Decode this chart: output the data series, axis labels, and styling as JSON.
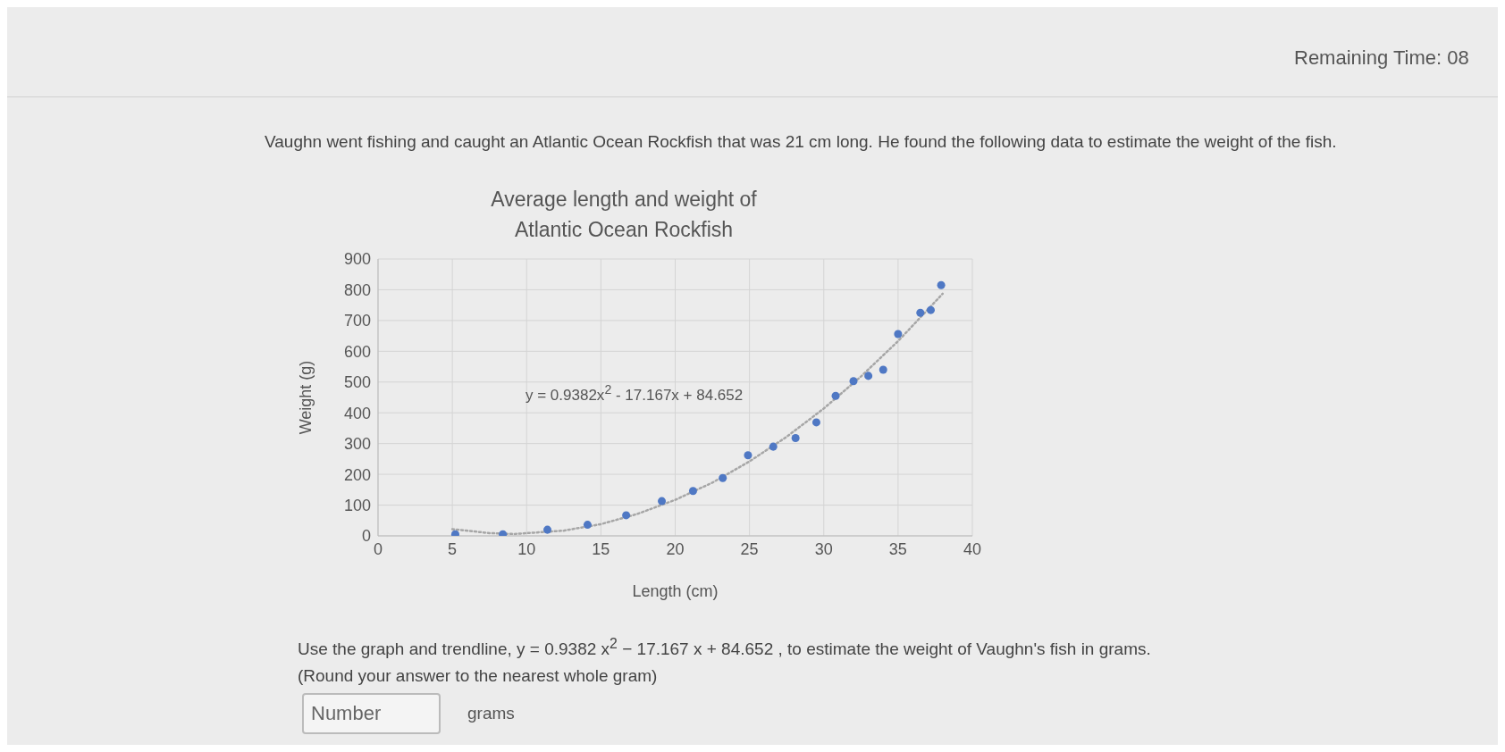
{
  "chart_data": {
    "type": "scatter",
    "title": "Average length and weight of\nAtlantic Ocean Rockfish",
    "xlabel": "Length (cm)",
    "ylabel": "Weight (g)",
    "xlim": [
      0,
      40
    ],
    "xticks": [
      0,
      5,
      10,
      15,
      20,
      25,
      30,
      35,
      40
    ],
    "ylim": [
      0,
      900
    ],
    "yticks": [
      0,
      100,
      200,
      300,
      400,
      500,
      600,
      700,
      800,
      900
    ],
    "grid": true,
    "marker": "circle",
    "series": [
      {
        "color": "#4f78c4",
        "x": [
          5.2,
          8.4,
          11.4,
          14.1,
          16.7,
          19.1,
          21.2,
          23.2,
          24.9,
          26.6,
          28.1,
          29.5,
          30.8,
          32.0,
          33.0,
          34.0,
          35.0,
          36.5,
          37.2,
          37.9
        ],
        "values": [
          5,
          5,
          20,
          36,
          67,
          113,
          146,
          188,
          262,
          290,
          318,
          369,
          455,
          503,
          520,
          540,
          656,
          725,
          734,
          815
        ]
      },
      {
        "type": "line",
        "color": "#a6a6a6",
        "line_style": "dotted",
        "marker": "none",
        "x": [
          5,
          7.5,
          9.15,
          12.5,
          15,
          17.5,
          20,
          22.5,
          25,
          27.5,
          30,
          32.5,
          35,
          38
        ],
        "values": [
          22,
          9,
          6,
          17,
          38,
          72,
          117,
          173,
          242,
          322,
          414,
          518,
          633,
          787
        ]
      }
    ],
    "annotations": [
      "Remaining Time: 08",
      "Vaughn went fishing and caught an Atlantic Ocean Rockfish that was 21 cm long. He found the following data to estimate the weight of the fish.",
      "y = 0.9382x$^{2}$ - 17.167x + 84.652",
      "Use the graph and trendline, y = 0.9382 x$^{2}$ − 17.167 x + 84.652 , to estimate the weight of Vaughn's fish in grams.",
      "(Round your answer to the nearest whole gram)",
      "Number",
      "grams"
    ]
  }
}
